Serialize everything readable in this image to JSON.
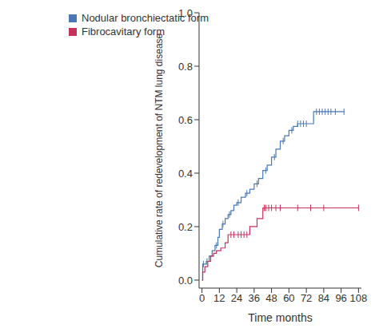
{
  "chart_data": {
    "type": "step",
    "x_label": "Time months",
    "y_label": "Cumulative rate of redevelopment of NTM lung disease",
    "xlim": [
      -2,
      110
    ],
    "xticks": [
      0,
      12,
      24,
      36,
      48,
      60,
      72,
      84,
      96,
      108
    ],
    "ylim": [
      -0.03,
      1.0
    ],
    "yticks": [
      {
        "value": 0,
        "label": "0.0"
      },
      0.2,
      0.4,
      0.6,
      0.8,
      {
        "value": 1,
        "label": "1.0"
      }
    ],
    "grid": false,
    "legend": "upper left",
    "series": [
      {
        "name": "Nodular bronchiectatic form",
        "color": "#4a78b5",
        "marker": "|",
        "line_style": "step",
        "x": [
          0,
          0.5,
          3,
          5,
          7,
          9,
          11,
          12,
          14,
          16,
          18,
          20,
          22,
          24,
          27,
          30,
          33,
          36,
          39,
          42,
          45,
          48,
          51,
          54,
          57,
          60,
          63,
          66,
          77,
          98
        ],
        "values": [
          0,
          0.06,
          0.07,
          0.09,
          0.11,
          0.13,
          0.16,
          0.19,
          0.21,
          0.23,
          0.245,
          0.26,
          0.28,
          0.29,
          0.31,
          0.325,
          0.34,
          0.36,
          0.38,
          0.41,
          0.43,
          0.46,
          0.49,
          0.52,
          0.54,
          0.56,
          0.575,
          0.585,
          0.63,
          0.63
        ],
        "censored": [
          1,
          3.5,
          10,
          14.5,
          19,
          25,
          31,
          38,
          44,
          50,
          56,
          62,
          66,
          68,
          70,
          72,
          79,
          81,
          83,
          85,
          87,
          89,
          92,
          98
        ]
      },
      {
        "name": "Fibrocavitary form",
        "color": "#c8305a",
        "marker": "|",
        "line_style": "step",
        "x": [
          0,
          0.5,
          2,
          4,
          6,
          8,
          10,
          13,
          16,
          18,
          33,
          38,
          42,
          108
        ],
        "values": [
          0,
          0.03,
          0.05,
          0.07,
          0.09,
          0.1,
          0.11,
          0.12,
          0.14,
          0.17,
          0.2,
          0.23,
          0.27,
          0.27
        ],
        "censored": [
          20,
          22,
          25,
          27,
          29,
          31,
          43,
          44,
          46,
          48,
          51,
          54,
          66,
          75,
          84,
          108
        ]
      }
    ]
  }
}
